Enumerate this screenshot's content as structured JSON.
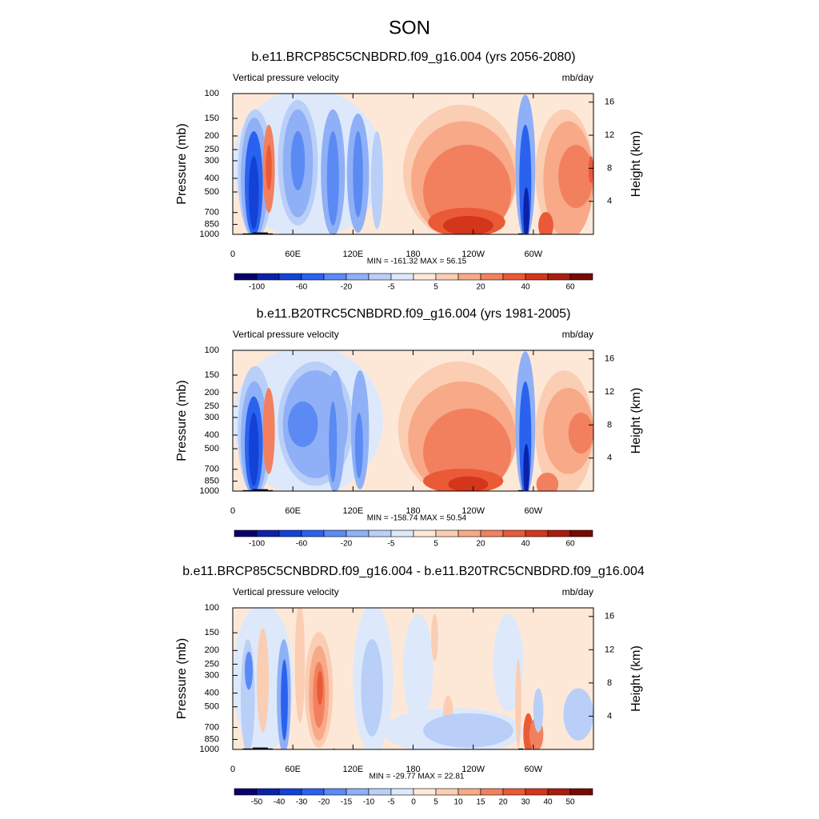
{
  "title": "SON",
  "chart_data": [
    {
      "type": "contour",
      "title": "b.e11.BRCP85C5CNBDRD.f09_g16.004 (yrs 2056-2080)",
      "left_label": "Vertical pressure velocity",
      "right_label": "mb/day",
      "ylabel": "Pressure (mb)",
      "y2label": "Height (km)",
      "log_y": true,
      "xlim": [
        0,
        360
      ],
      "xticks": [
        0,
        {
          "value": 60,
          "label": "60E"
        },
        {
          "value": 120,
          "label": "120E"
        },
        180,
        {
          "value": 240,
          "label": "120W"
        },
        {
          "value": 300,
          "label": "60W"
        }
      ],
      "ylim": [
        1000,
        100
      ],
      "yticks": [
        100,
        150,
        200,
        250,
        300,
        400,
        500,
        700,
        850,
        1000
      ],
      "y2ticks": [
        4,
        8,
        12,
        16
      ],
      "stats": "MIN = -161.32  MAX =  56.15",
      "colorbar": {
        "levels": [
          -100,
          null,
          -60,
          null,
          -20,
          null,
          -5,
          null,
          5,
          null,
          20,
          null,
          40,
          null,
          60
        ],
        "colors": [
          "#07006b",
          "#0a22a8",
          "#1342d6",
          "#2a62ef",
          "#5c8af4",
          "#8fb0f6",
          "#b9cff8",
          "#dde9fb",
          "#fde8d8",
          "#fbcdb2",
          "#f7a988",
          "#f2805e",
          "#ea5a37",
          "#d4361c",
          "#a81d10",
          "#780a04"
        ]
      }
    },
    {
      "type": "contour",
      "title": "b.e11.B20TRC5CNBDRD.f09_g16.004 (yrs 1981-2005)",
      "left_label": "Vertical pressure velocity",
      "right_label": "mb/day",
      "ylabel": "Pressure (mb)",
      "y2label": "Height (km)",
      "log_y": true,
      "xlim": [
        0,
        360
      ],
      "xticks": [
        0,
        {
          "value": 60,
          "label": "60E"
        },
        {
          "value": 120,
          "label": "120E"
        },
        180,
        {
          "value": 240,
          "label": "120W"
        },
        {
          "value": 300,
          "label": "60W"
        }
      ],
      "ylim": [
        1000,
        100
      ],
      "yticks": [
        100,
        150,
        200,
        250,
        300,
        400,
        500,
        700,
        850,
        1000
      ],
      "y2ticks": [
        4,
        8,
        12,
        16
      ],
      "stats": "MIN = -158.74  MAX =  50.54",
      "colorbar": {
        "levels": [
          -100,
          null,
          -60,
          null,
          -20,
          null,
          -5,
          null,
          5,
          null,
          20,
          null,
          40,
          null,
          60
        ],
        "colors": [
          "#07006b",
          "#0a22a8",
          "#1342d6",
          "#2a62ef",
          "#5c8af4",
          "#8fb0f6",
          "#b9cff8",
          "#dde9fb",
          "#fde8d8",
          "#fbcdb2",
          "#f7a988",
          "#f2805e",
          "#ea5a37",
          "#d4361c",
          "#a81d10",
          "#780a04"
        ]
      }
    },
    {
      "type": "contour",
      "title": "b.e11.BRCP85C5CNBDRD.f09_g16.004 - b.e11.B20TRC5CNBDRD.f09_g16.004",
      "left_label": "Vertical pressure velocity",
      "right_label": "mb/day",
      "ylabel": "Pressure (mb)",
      "y2label": "Height (km)",
      "log_y": true,
      "xlim": [
        0,
        360
      ],
      "xticks": [
        0,
        {
          "value": 60,
          "label": "60E"
        },
        {
          "value": 120,
          "label": "120E"
        },
        180,
        {
          "value": 240,
          "label": "120W"
        },
        {
          "value": 300,
          "label": "60W"
        }
      ],
      "ylim": [
        1000,
        100
      ],
      "yticks": [
        100,
        150,
        200,
        250,
        300,
        400,
        500,
        700,
        850,
        1000
      ],
      "y2ticks": [
        4,
        8,
        12,
        16
      ],
      "stats": "MIN = -29.77  MAX =  22.81",
      "colorbar": {
        "levels": [
          -50,
          -40,
          -30,
          -20,
          -15,
          -10,
          -5,
          0,
          5,
          10,
          15,
          20,
          30,
          40,
          50
        ],
        "colors": [
          "#07006b",
          "#0a22a8",
          "#1342d6",
          "#2a62ef",
          "#5c8af4",
          "#8fb0f6",
          "#b9cff8",
          "#dde9fb",
          "#fde8d8",
          "#fbcdb2",
          "#f7a988",
          "#f2805e",
          "#ea5a37",
          "#d4361c",
          "#a81d10",
          "#780a04"
        ]
      }
    }
  ]
}
